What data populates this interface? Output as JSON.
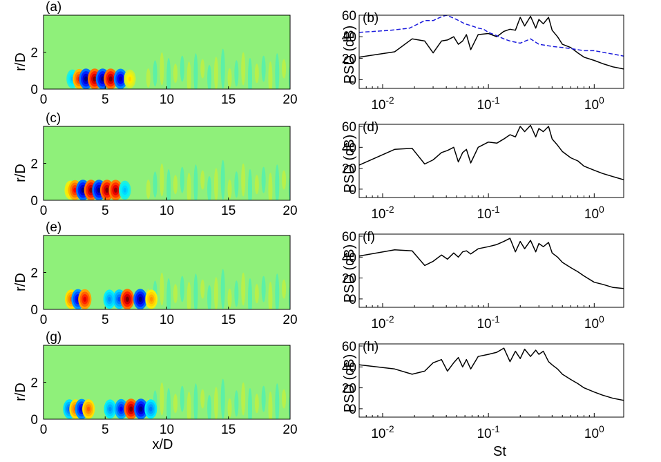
{
  "colors": {
    "field_background": "#8ff07a",
    "psd_solid": "#000000",
    "psd_dashed": "#1a1adc",
    "axis": "#000000"
  },
  "chart_data": [
    {
      "type": "heatmap",
      "panel": "(a)",
      "xlabel": "",
      "ylabel": "r/D",
      "xlim": [
        0,
        20
      ],
      "ylim": [
        0,
        4
      ],
      "xticks": [
        "0",
        "5",
        "10",
        "15",
        "20"
      ],
      "yticks": [
        "0",
        "2"
      ],
      "structures": [
        {
          "x": 2.35,
          "sign": -1,
          "amp": 0.35
        },
        {
          "x": 2.9,
          "sign": 1,
          "amp": 0.7
        },
        {
          "x": 3.45,
          "sign": -1,
          "amp": 1.0
        },
        {
          "x": 4.15,
          "sign": 1,
          "amp": 1.0
        },
        {
          "x": 4.8,
          "sign": -1,
          "amp": 1.0
        },
        {
          "x": 5.45,
          "sign": 1,
          "amp": 1.0
        },
        {
          "x": 6.25,
          "sign": -1,
          "amp": 0.9
        },
        {
          "x": 7.0,
          "sign": 1,
          "amp": 0.3
        }
      ]
    },
    {
      "type": "line",
      "panel": "(b)",
      "xlabel": "",
      "ylabel": "PSD (dB)",
      "xscale": "log",
      "xlim": [
        0.006,
        1.9
      ],
      "ylim": [
        -8,
        60
      ],
      "xticks": [
        "10^-2",
        "10^-1",
        "10^0"
      ],
      "yticks": [
        "0",
        "20",
        "40",
        "60"
      ],
      "series": [
        {
          "name": "solid",
          "style": "solid",
          "x": [
            0.006,
            0.013,
            0.019,
            0.025,
            0.03,
            0.036,
            0.041,
            0.047,
            0.052,
            0.057,
            0.062,
            0.068,
            0.08,
            0.1,
            0.12,
            0.14,
            0.16,
            0.18,
            0.2,
            0.22,
            0.25,
            0.28,
            0.3,
            0.33,
            0.37,
            0.4,
            0.45,
            0.5,
            0.6,
            0.7,
            0.8,
            1.0,
            1.2,
            1.5,
            1.9
          ],
          "y": [
            21,
            26,
            38,
            36,
            25,
            36,
            37,
            40,
            33,
            36,
            42,
            28,
            42,
            43,
            40,
            45,
            47,
            46,
            58,
            50,
            59,
            48,
            56,
            52,
            58,
            46,
            40,
            33,
            30,
            25,
            21,
            18,
            15,
            12,
            10
          ]
        },
        {
          "name": "dashed",
          "style": "dashed",
          "x": [
            0.006,
            0.012,
            0.018,
            0.025,
            0.03,
            0.035,
            0.04,
            0.045,
            0.05,
            0.06,
            0.07,
            0.08,
            0.09,
            0.1,
            0.12,
            0.14,
            0.16,
            0.2,
            0.25,
            0.3,
            0.4,
            0.5,
            0.6,
            0.8,
            1.0,
            1.3,
            1.9
          ],
          "y": [
            44,
            46,
            48,
            55,
            55,
            58,
            60,
            58,
            56,
            52,
            50,
            48,
            47,
            44,
            41,
            38,
            36,
            34,
            38,
            33,
            31,
            30,
            29,
            27,
            27,
            25,
            22
          ]
        }
      ]
    },
    {
      "type": "heatmap",
      "panel": "(c)",
      "xlabel": "",
      "ylabel": "r/D",
      "xlim": [
        0,
        20
      ],
      "ylim": [
        0,
        4
      ],
      "xticks": [
        "0",
        "5",
        "10",
        "15",
        "20"
      ],
      "yticks": [
        "0",
        "2"
      ],
      "structures": [
        {
          "x": 2.2,
          "sign": 1,
          "amp": 0.4
        },
        {
          "x": 2.55,
          "sign": 1,
          "amp": 0.75
        },
        {
          "x": 3.2,
          "sign": -1,
          "amp": 1.0
        },
        {
          "x": 3.85,
          "sign": 1,
          "amp": 1.0
        },
        {
          "x": 4.5,
          "sign": -1,
          "amp": 1.0
        },
        {
          "x": 5.15,
          "sign": 1,
          "amp": 1.0
        },
        {
          "x": 5.85,
          "sign": 1,
          "amp": 0.95
        },
        {
          "x": 6.6,
          "sign": -1,
          "amp": 0.35
        }
      ]
    },
    {
      "type": "line",
      "panel": "(d)",
      "xlabel": "",
      "ylabel": "PSD (dB)",
      "xscale": "log",
      "xlim": [
        0.006,
        1.9
      ],
      "ylim": [
        -8,
        62
      ],
      "xticks": [
        "10^-2",
        "10^-1",
        "10^0"
      ],
      "yticks": [
        "0",
        "20",
        "40",
        "60"
      ],
      "series": [
        {
          "name": "solid",
          "style": "solid",
          "x": [
            0.006,
            0.013,
            0.019,
            0.025,
            0.03,
            0.036,
            0.041,
            0.047,
            0.052,
            0.057,
            0.062,
            0.068,
            0.08,
            0.1,
            0.12,
            0.14,
            0.16,
            0.18,
            0.2,
            0.22,
            0.25,
            0.28,
            0.3,
            0.33,
            0.37,
            0.4,
            0.45,
            0.5,
            0.6,
            0.7,
            0.8,
            1.0,
            1.2,
            1.5,
            1.9
          ],
          "y": [
            23,
            38,
            39,
            24,
            28,
            35,
            37,
            40,
            26,
            35,
            38,
            25,
            40,
            45,
            44,
            48,
            52,
            50,
            60,
            55,
            61,
            50,
            58,
            55,
            60,
            48,
            42,
            36,
            30,
            27,
            22,
            18,
            15,
            12,
            9
          ]
        }
      ]
    },
    {
      "type": "heatmap",
      "panel": "(e)",
      "xlabel": "",
      "ylabel": "r/D",
      "xlim": [
        0,
        20
      ],
      "ylim": [
        0,
        4
      ],
      "xticks": [
        "0",
        "5",
        "10",
        "15",
        "20"
      ],
      "yticks": [
        "0",
        "2"
      ],
      "structures": [
        {
          "x": 2.25,
          "sign": 1,
          "amp": 0.55
        },
        {
          "x": 2.8,
          "sign": -1,
          "amp": 0.85
        },
        {
          "x": 3.35,
          "sign": 1,
          "amp": 0.8
        },
        {
          "x": 5.35,
          "sign": -1,
          "amp": 0.45
        },
        {
          "x": 6.15,
          "sign": -1,
          "amp": 0.6
        },
        {
          "x": 6.8,
          "sign": 1,
          "amp": 1.0
        },
        {
          "x": 7.85,
          "sign": -1,
          "amp": 1.0
        },
        {
          "x": 8.75,
          "sign": 1,
          "amp": 0.45
        }
      ]
    },
    {
      "type": "line",
      "panel": "(f)",
      "xlabel": "",
      "ylabel": "PSD (dB)",
      "xscale": "log",
      "xlim": [
        0.006,
        1.9
      ],
      "ylim": [
        -8,
        62
      ],
      "xticks": [
        "10^-2",
        "10^-1",
        "10^0"
      ],
      "yticks": [
        "0",
        "20",
        "40",
        "60"
      ],
      "series": [
        {
          "name": "solid",
          "style": "solid",
          "x": [
            0.006,
            0.013,
            0.019,
            0.025,
            0.03,
            0.036,
            0.041,
            0.047,
            0.052,
            0.057,
            0.062,
            0.068,
            0.08,
            0.1,
            0.12,
            0.14,
            0.16,
            0.18,
            0.2,
            0.22,
            0.25,
            0.28,
            0.3,
            0.33,
            0.37,
            0.4,
            0.45,
            0.5,
            0.6,
            0.7,
            0.8,
            1.0,
            1.2,
            1.5,
            1.9
          ],
          "y": [
            41,
            47,
            46,
            32,
            36,
            42,
            38,
            44,
            40,
            45,
            46,
            43,
            48,
            50,
            52,
            55,
            58,
            45,
            55,
            48,
            56,
            45,
            53,
            50,
            54,
            44,
            40,
            35,
            30,
            26,
            22,
            16,
            14,
            11,
            10
          ]
        }
      ]
    },
    {
      "type": "heatmap",
      "panel": "(g)",
      "xlabel": "x/D",
      "ylabel": "r/D",
      "xlim": [
        0,
        20
      ],
      "ylim": [
        0,
        4
      ],
      "xticks": [
        "0",
        "5",
        "10",
        "15",
        "20"
      ],
      "yticks": [
        "0",
        "2"
      ],
      "structures": [
        {
          "x": 2.1,
          "sign": -1,
          "amp": 0.55
        },
        {
          "x": 2.6,
          "sign": 1,
          "amp": 0.55
        },
        {
          "x": 3.1,
          "sign": -1,
          "amp": 0.85
        },
        {
          "x": 3.65,
          "sign": 1,
          "amp": 0.55
        },
        {
          "x": 5.4,
          "sign": -1,
          "amp": 0.45
        },
        {
          "x": 6.3,
          "sign": -1,
          "amp": 0.75
        },
        {
          "x": 7.1,
          "sign": 1,
          "amp": 1.0
        },
        {
          "x": 7.9,
          "sign": -1,
          "amp": 1.0
        },
        {
          "x": 8.7,
          "sign": -1,
          "amp": 0.5
        }
      ]
    },
    {
      "type": "line",
      "panel": "(h)",
      "xlabel": "St",
      "ylabel": "PSD (dB)",
      "xscale": "log",
      "xlim": [
        0.006,
        1.9
      ],
      "ylim": [
        -8,
        62
      ],
      "xticks": [
        "10^-2",
        "10^-1",
        "10^0"
      ],
      "yticks": [
        "0",
        "20",
        "40",
        "60"
      ],
      "series": [
        {
          "name": "solid",
          "style": "solid",
          "x": [
            0.006,
            0.013,
            0.019,
            0.025,
            0.03,
            0.036,
            0.041,
            0.047,
            0.052,
            0.057,
            0.062,
            0.068,
            0.08,
            0.1,
            0.12,
            0.14,
            0.16,
            0.18,
            0.2,
            0.22,
            0.25,
            0.28,
            0.3,
            0.33,
            0.37,
            0.4,
            0.45,
            0.5,
            0.6,
            0.7,
            0.8,
            1.0,
            1.2,
            1.5,
            1.9
          ],
          "y": [
            42,
            38,
            33,
            36,
            44,
            47,
            36,
            44,
            49,
            40,
            47,
            38,
            50,
            52,
            54,
            58,
            45,
            55,
            48,
            57,
            50,
            56,
            52,
            55,
            45,
            42,
            38,
            33,
            28,
            24,
            20,
            16,
            13,
            10,
            8
          ]
        }
      ]
    }
  ]
}
